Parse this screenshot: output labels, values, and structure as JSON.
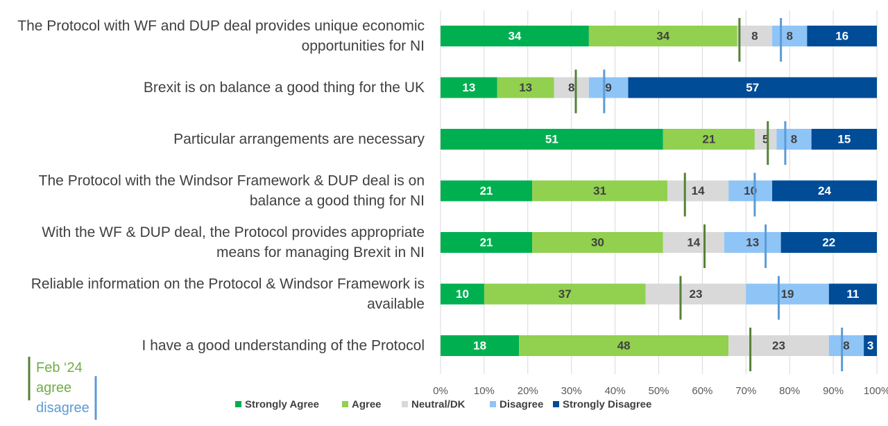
{
  "chart_data": {
    "type": "bar",
    "orientation": "horizontal",
    "stacked": true,
    "title": "",
    "xlabel": "",
    "ylabel": "",
    "xlim": [
      0,
      100
    ],
    "x_ticks": [
      "0%",
      "10%",
      "20%",
      "30%",
      "40%",
      "50%",
      "60%",
      "70%",
      "80%",
      "90%",
      "100%"
    ],
    "grid": true,
    "legend_position": "bottom",
    "categories": [
      [
        "The Protocol with WF and DUP deal provides unique economic",
        "opportunities for NI"
      ],
      [
        "Brexit is on balance a good thing for the UK"
      ],
      [
        "Particular arrangements are necessary"
      ],
      [
        "The Protocol with the Windsor Framework & DUP deal is on",
        "balance a good thing for NI"
      ],
      [
        "With the WF & DUP deal, the Protocol provides appropriate",
        "means for managing Brexit in NI"
      ],
      [
        "Reliable information on the Protocol & Windsor Framework is",
        "available"
      ],
      [
        "I have a good understanding of the Protocol"
      ]
    ],
    "series": [
      {
        "name": "Strongly Agree",
        "color": "#00b050",
        "label_color": "#ffffff",
        "values": [
          34,
          13,
          51,
          21,
          21,
          10,
          18
        ]
      },
      {
        "name": "Agree",
        "color": "#92d050",
        "label_color": "#404040",
        "values": [
          34,
          13,
          21,
          31,
          30,
          37,
          48
        ]
      },
      {
        "name": "Neutral/DK",
        "color": "#d9d9d9",
        "label_color": "#404040",
        "values": [
          8,
          8,
          5,
          14,
          14,
          23,
          23
        ]
      },
      {
        "name": "Disagree",
        "color": "#8fc4f7",
        "label_color": "#404040",
        "values": [
          8,
          9,
          8,
          10,
          13,
          19,
          8
        ]
      },
      {
        "name": "Strongly Disagree",
        "color": "#004c97",
        "label_color": "#ffffff",
        "values": [
          16,
          57,
          15,
          24,
          22,
          11,
          3
        ]
      }
    ],
    "comparison_markers": {
      "label": "Feb ‘24",
      "agree": {
        "label": "agree",
        "color": "#548235",
        "values": [
          68.5,
          31,
          75,
          56,
          60.5,
          55,
          71
        ]
      },
      "disagree": {
        "label": "disagree",
        "color": "#5b9bd5",
        "values": [
          78,
          37.5,
          79,
          72,
          74.5,
          77.5,
          92
        ]
      }
    }
  }
}
